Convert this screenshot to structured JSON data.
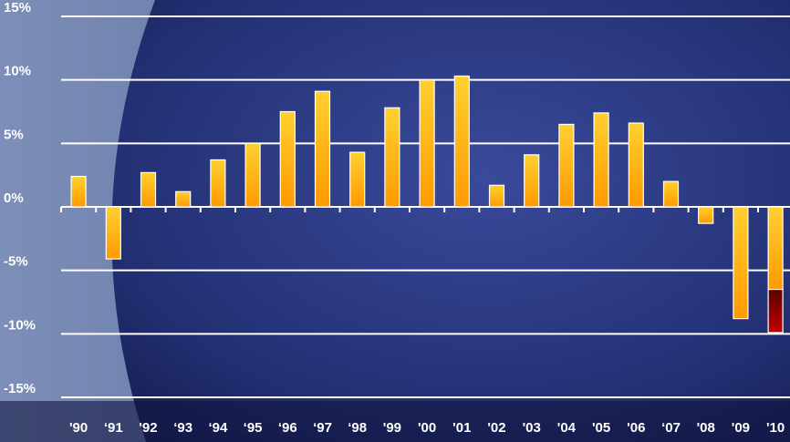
{
  "chart_data": {
    "type": "bar",
    "categories": [
      "'90",
      "‘91",
      "'92",
      "‘93",
      "‘94",
      "‘95",
      "‘96",
      "‘97",
      "‘98",
      "'99",
      "'00",
      "'01",
      "'02",
      "'03",
      "'04",
      "'05",
      "'06",
      "‘07",
      "'08",
      "'09",
      "'10"
    ],
    "series": [
      {
        "color": "#ffaa00",
        "values": [
          2.4,
          -4.1,
          2.7,
          1.2,
          3.7,
          5.0,
          7.5,
          9.1,
          4.3,
          7.8,
          10.0,
          10.3,
          1.7,
          4.1,
          6.5,
          7.4,
          6.6,
          2.0,
          -1.3,
          -8.8,
          -6.5
        ]
      },
      {
        "color": "#8b0000",
        "values": [
          null,
          null,
          null,
          null,
          null,
          null,
          null,
          null,
          null,
          null,
          null,
          null,
          null,
          null,
          null,
          null,
          null,
          null,
          null,
          null,
          -3.4
        ]
      }
    ],
    "ylim": [
      -15,
      15
    ],
    "yticks": [
      {
        "value": -15,
        "label": "-15%"
      },
      {
        "value": -10,
        "label": "-10%"
      },
      {
        "value": -5,
        "label": "-5%"
      },
      {
        "value": 0,
        "label": "0%"
      },
      {
        "value": 5,
        "label": "5%"
      },
      {
        "value": 10,
        "label": "10%"
      },
      {
        "value": 15,
        "label": "15%"
      }
    ],
    "grid": true
  }
}
